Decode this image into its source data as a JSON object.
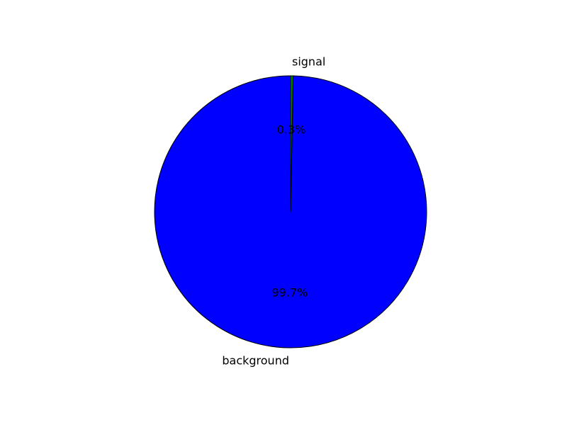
{
  "chart_data": {
    "type": "pie",
    "slices": [
      {
        "label": "background",
        "value": 99.7,
        "pct_label": "99.7%",
        "color": "#0000ff"
      },
      {
        "label": "signal",
        "value": 0.3,
        "pct_label": "0.3%",
        "color": "#008000"
      }
    ],
    "start_angle_deg": 90,
    "direction": "counterclockwise",
    "edge_color": "#000000"
  }
}
